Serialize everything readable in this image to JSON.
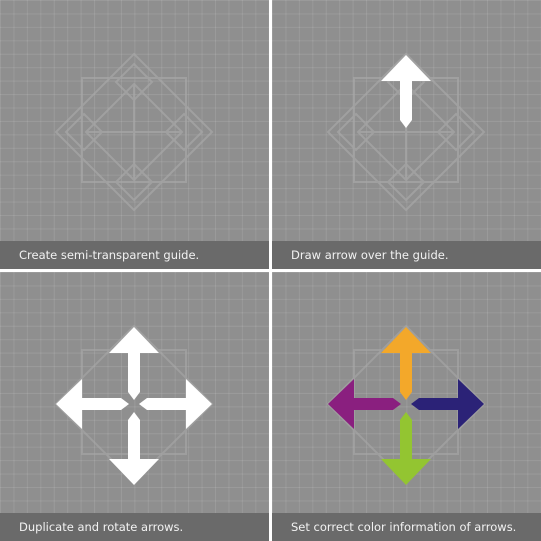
{
  "panels": [
    {
      "caption": "Create semi-transparent guide."
    },
    {
      "caption": "Draw arrow over the guide."
    },
    {
      "caption": "Duplicate and rotate arrows."
    },
    {
      "caption": "Set correct color information of arrows."
    }
  ],
  "colors": {
    "background": "#8f8f8f",
    "caption_bar": "#6a6a6a",
    "divider": "#ffffff",
    "guide_stroke": "#a8a8a8",
    "arrow_white": "#ffffff",
    "arrow_up": "#f3a82a",
    "arrow_right": "#2b2277",
    "arrow_down": "#93c531",
    "arrow_left": "#8a1f7f"
  }
}
